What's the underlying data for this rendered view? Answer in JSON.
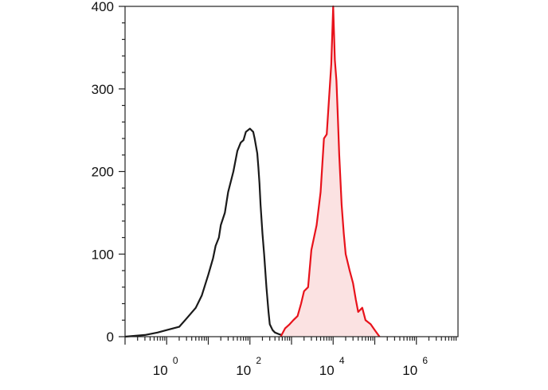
{
  "chart_data": {
    "type": "area",
    "title": "",
    "xlabel": "",
    "ylabel": "",
    "x_scale": "log10",
    "xlim": [
      0.1,
      10000000
    ],
    "ylim": [
      0,
      400
    ],
    "grid": false,
    "y_ticks": [
      {
        "value": 0,
        "label": "0"
      },
      {
        "value": 100,
        "label": "100"
      },
      {
        "value": 200,
        "label": "200"
      },
      {
        "value": 300,
        "label": "300"
      },
      {
        "value": 400,
        "label": "400"
      }
    ],
    "x_ticks": [
      {
        "value": 1,
        "base": "10",
        "exp": "0"
      },
      {
        "value": 100,
        "base": "10",
        "exp": "2"
      },
      {
        "value": 10000,
        "base": "10",
        "exp": "4"
      },
      {
        "value": 1000000,
        "base": "10",
        "exp": "6"
      }
    ],
    "series": [
      {
        "color": "#1a1a1a",
        "fill": "none",
        "x": [
          0.1,
          0.3,
          0.6,
          1,
          2,
          3,
          5,
          7,
          10,
          13,
          15,
          18,
          20,
          25,
          30,
          40,
          50,
          60,
          70,
          80,
          100,
          120,
          130,
          150,
          160,
          170,
          180,
          200,
          220,
          250,
          280,
          300,
          350,
          400,
          500,
          600
        ],
        "y": [
          0,
          2,
          5,
          8,
          12,
          22,
          35,
          50,
          75,
          95,
          110,
          120,
          135,
          150,
          175,
          200,
          225,
          235,
          238,
          248,
          252,
          248,
          240,
          222,
          205,
          185,
          160,
          125,
          100,
          60,
          30,
          15,
          8,
          5,
          3,
          2
        ]
      },
      {
        "color": "#e8121b",
        "fill": "#fbe2e2",
        "x": [
          550,
          700,
          900,
          1100,
          1400,
          1700,
          2000,
          2500,
          3000,
          4000,
          5000,
          6000,
          7000,
          8000,
          9000,
          10000,
          11000,
          12000,
          13000,
          14000,
          16000,
          18000,
          20000,
          25000,
          30000,
          35000,
          40000,
          50000,
          60000,
          80000,
          100000,
          130000
        ],
        "y": [
          0,
          10,
          15,
          20,
          25,
          40,
          55,
          60,
          105,
          135,
          175,
          240,
          245,
          290,
          330,
          400,
          335,
          310,
          265,
          220,
          160,
          125,
          100,
          80,
          65,
          45,
          30,
          35,
          20,
          15,
          8,
          0
        ]
      }
    ]
  }
}
